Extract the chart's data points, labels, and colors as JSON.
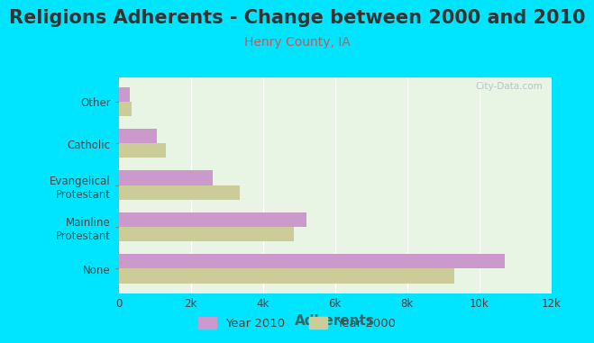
{
  "title": "Religions Adherents - Change between 2000 and 2010",
  "subtitle": "Henry County, IA",
  "xlabel": "Adherents",
  "categories": [
    "None",
    "Mainline\nProtestant",
    "Evangelical\nProtestant",
    "Catholic",
    "Other"
  ],
  "values_2010": [
    10700,
    5200,
    2600,
    1050,
    300
  ],
  "values_2000": [
    9300,
    4850,
    3350,
    1300,
    350
  ],
  "color_2010": "#cc99cc",
  "color_2000": "#cccc99",
  "background_outer": "#00e5ff",
  "background_inner": "#e8f5e5",
  "xlim": [
    0,
    12000
  ],
  "xticks": [
    0,
    2000,
    4000,
    6000,
    8000,
    10000,
    12000
  ],
  "xtick_labels": [
    "0",
    "2k",
    "4k",
    "6k",
    "8k",
    "10k",
    "12k"
  ],
  "bar_height": 0.35,
  "title_fontsize": 15,
  "subtitle_fontsize": 10,
  "xlabel_fontsize": 11,
  "title_color": "#333333",
  "subtitle_color": "#cc5555",
  "xlabel_color": "#336666",
  "tick_color": "#444444",
  "legend_labels": [
    "Year 2010",
    "Year 2000"
  ],
  "watermark": "City-Data.com"
}
